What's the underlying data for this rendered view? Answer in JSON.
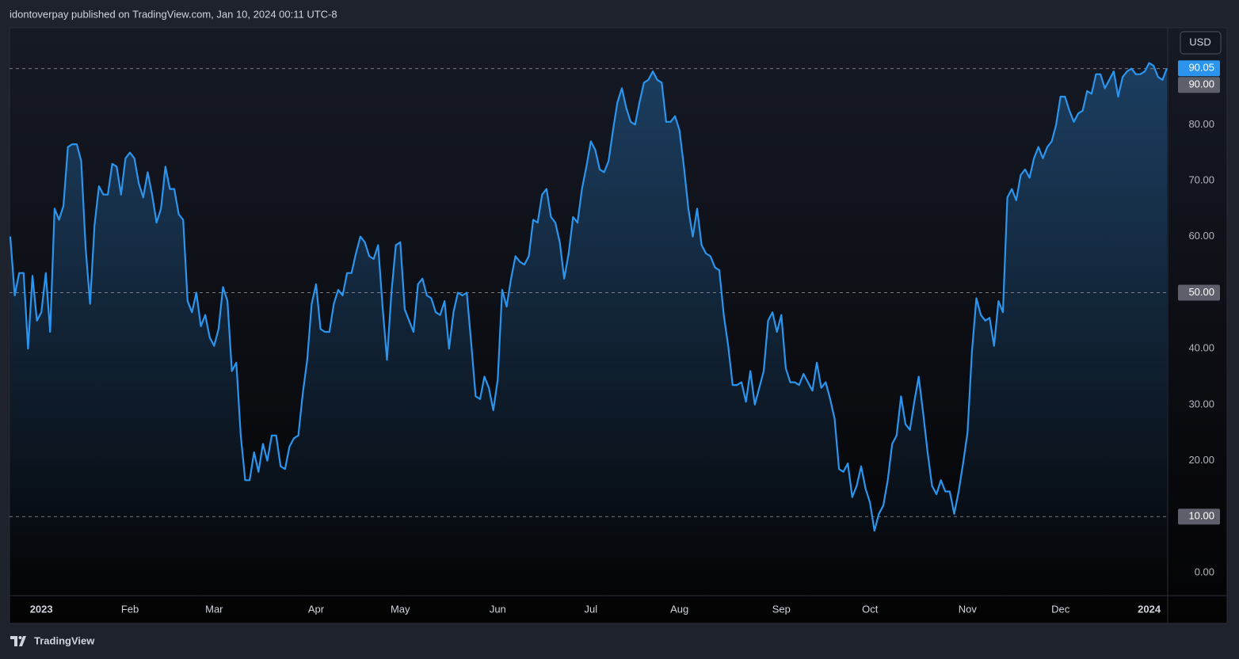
{
  "header": "idontoverpay published on TradingView.com, Jan 10, 2024 00:11 UTC-8",
  "currency": "USD",
  "footer": "TradingView",
  "chart_data": {
    "type": "line",
    "categories": [
      null,
      null,
      null,
      null,
      null,
      null,
      null,
      "2023",
      null,
      null,
      null,
      null,
      null,
      null,
      null,
      null,
      null,
      null,
      null,
      null,
      null,
      null,
      null,
      null,
      null,
      null,
      null,
      "Feb",
      null,
      null,
      null,
      null,
      null,
      null,
      null,
      null,
      null,
      null,
      null,
      null,
      null,
      null,
      null,
      null,
      null,
      null,
      "Mar",
      null,
      null,
      null,
      null,
      null,
      null,
      null,
      null,
      null,
      null,
      null,
      null,
      null,
      null,
      null,
      null,
      null,
      null,
      null,
      null,
      null,
      null,
      "Apr",
      null,
      null,
      null,
      null,
      null,
      null,
      null,
      null,
      null,
      null,
      null,
      null,
      null,
      null,
      null,
      null,
      null,
      null,
      "May",
      null,
      null,
      null,
      null,
      null,
      null,
      null,
      null,
      null,
      null,
      null,
      null,
      null,
      null,
      null,
      null,
      null,
      null,
      null,
      null,
      null,
      "Jun",
      null,
      null,
      null,
      null,
      null,
      null,
      null,
      null,
      null,
      null,
      null,
      null,
      null,
      null,
      null,
      null,
      null,
      null,
      null,
      null,
      "Jul",
      null,
      null,
      null,
      null,
      null,
      null,
      null,
      null,
      null,
      null,
      null,
      null,
      null,
      null,
      null,
      null,
      null,
      null,
      null,
      "Aug",
      null,
      null,
      null,
      null,
      null,
      null,
      null,
      null,
      null,
      null,
      null,
      null,
      null,
      null,
      null,
      null,
      null,
      null,
      null,
      null,
      null,
      null,
      "Sep",
      null,
      null,
      null,
      null,
      null,
      null,
      null,
      null,
      null,
      null,
      null,
      null,
      null,
      null,
      null,
      null,
      null,
      null,
      null,
      "Oct",
      null,
      null,
      null,
      null,
      null,
      null,
      null,
      null,
      null,
      null,
      null,
      null,
      null,
      null,
      null,
      null,
      null,
      null,
      null,
      null,
      null,
      "Nov",
      null,
      null,
      null,
      null,
      null,
      null,
      null,
      null,
      null,
      null,
      null,
      null,
      null,
      null,
      null,
      null,
      null,
      null,
      null,
      null,
      "Dec",
      null,
      null,
      null,
      null,
      null,
      null,
      null,
      null,
      null,
      null,
      null,
      null,
      null,
      null,
      null,
      null,
      null,
      null,
      null,
      "2024",
      null,
      null,
      null,
      null
    ],
    "series": [
      {
        "color": "#2b95ee",
        "values": [
          60,
          49.5,
          53.5,
          53.5,
          40,
          53,
          45,
          46.5,
          53.5,
          43,
          65,
          63,
          65.5,
          76,
          76.5,
          76.5,
          73.5,
          58,
          48,
          62,
          69,
          67.5,
          67.5,
          73,
          72.5,
          67.5,
          74,
          75,
          74,
          69.5,
          67,
          71.5,
          67.5,
          62.5,
          65,
          72.5,
          68.5,
          68.5,
          64,
          63,
          48.5,
          46.5,
          50,
          44,
          46,
          42,
          40.5,
          43.5,
          51,
          48.5,
          36,
          37.5,
          24.5,
          16.5,
          16.5,
          21.5,
          18,
          23,
          20,
          24.5,
          24.5,
          19,
          18.5,
          22.5,
          24,
          24.5,
          32,
          38,
          48,
          51.5,
          43.5,
          43,
          43,
          48,
          50.5,
          49.5,
          53.5,
          53.5,
          57,
          60,
          59,
          56.5,
          56,
          58.5,
          47.5,
          38,
          50,
          58.5,
          59,
          47,
          45,
          43,
          51.5,
          52.5,
          49.5,
          49,
          46.5,
          46,
          48.5,
          40,
          46.5,
          50,
          49.5,
          50,
          41,
          31.5,
          31,
          35,
          33,
          29,
          34.5,
          50.5,
          47.5,
          52.5,
          56.5,
          55.5,
          55,
          56.5,
          63,
          62.5,
          67.5,
          68.5,
          63.5,
          62.5,
          59,
          52.5,
          57,
          63.5,
          62.5,
          68.5,
          72.5,
          77,
          75.5,
          72,
          71.5,
          73.5,
          79,
          84,
          86.5,
          83,
          80.5,
          80,
          84,
          87.5,
          88,
          89.5,
          88,
          87.5,
          80.5,
          80.5,
          81.5,
          79,
          72.5,
          65,
          60,
          65,
          58.5,
          57,
          56.5,
          54.5,
          54,
          46,
          40.5,
          33.5,
          33.5,
          34,
          30.5,
          36,
          30,
          33,
          36,
          45,
          46.5,
          43,
          46,
          36.5,
          34,
          34,
          33.5,
          35.5,
          34,
          32.5,
          37.5,
          33,
          34,
          31,
          27.5,
          18.5,
          18,
          19.5,
          13.5,
          15.5,
          19,
          15,
          12.5,
          7.5,
          10.5,
          12,
          16.5,
          23,
          24.5,
          31.5,
          26.5,
          25.5,
          30.5,
          35,
          28.5,
          21.5,
          15.5,
          14,
          16.5,
          14.5,
          14.5,
          10.5,
          14.5,
          19.5,
          25,
          39.5,
          49,
          46,
          45,
          45.5,
          40.5,
          48.5,
          46.5,
          67,
          68.5,
          66.5,
          71,
          72,
          70.5,
          74,
          76,
          74,
          76,
          77,
          80,
          85,
          85,
          82.5,
          80.5,
          82,
          82.5,
          86,
          85.5,
          89,
          89,
          86.5,
          88,
          89.5,
          85,
          88.5,
          89.5,
          90,
          89,
          89,
          89.5,
          91,
          90.5,
          88.5,
          88,
          90.05
        ]
      }
    ],
    "ylim": [
      -4.1,
      97.3
    ],
    "yticks": [
      {
        "value": 0,
        "label": "0.00"
      },
      {
        "value": 10,
        "label": "10.00"
      },
      {
        "value": 20,
        "label": "20.00"
      },
      {
        "value": 30,
        "label": "30.00"
      },
      {
        "value": 40,
        "label": "40.00"
      },
      {
        "value": 50,
        "label": "50.00"
      },
      {
        "value": 60,
        "label": "60.00"
      },
      {
        "value": 70,
        "label": "70.00"
      },
      {
        "value": 80,
        "label": "80.00"
      },
      {
        "value": 90,
        "label": "90.00"
      }
    ],
    "hlines": [
      {
        "value": 10,
        "label": "10.00"
      },
      {
        "value": 50,
        "label": "50.00"
      },
      {
        "value": 90,
        "label": "90.00"
      }
    ],
    "grid": false
  }
}
